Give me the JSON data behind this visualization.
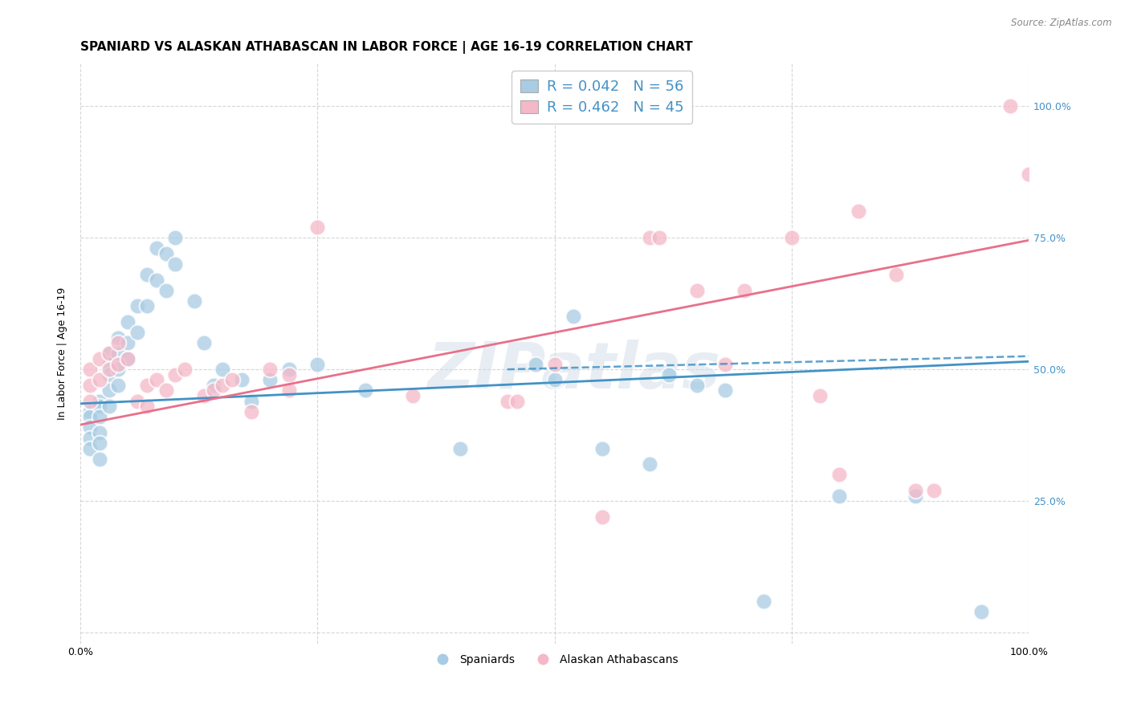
{
  "title": "SPANIARD VS ALASKAN ATHABASCAN IN LABOR FORCE | AGE 16-19 CORRELATION CHART",
  "source": "Source: ZipAtlas.com",
  "ylabel": "In Labor Force | Age 16-19",
  "xlim": [
    0,
    1
  ],
  "ylim": [
    -0.02,
    1.08
  ],
  "ytick_labels_right": [
    "100.0%",
    "75.0%",
    "50.0%",
    "25.0%"
  ],
  "ytick_positions_right": [
    1.0,
    0.75,
    0.5,
    0.25
  ],
  "watermark": "ZIPatlas",
  "blue_color": "#a8cce4",
  "pink_color": "#f4b8c8",
  "blue_line_color": "#4292c6",
  "pink_line_color": "#e8708a",
  "legend_R_blue": "R = 0.042",
  "legend_N_blue": "N = 56",
  "legend_R_pink": "R = 0.462",
  "legend_N_pink": "N = 45",
  "spaniards_x": [
    0.01,
    0.01,
    0.01,
    0.01,
    0.01,
    0.02,
    0.02,
    0.02,
    0.02,
    0.02,
    0.02,
    0.03,
    0.03,
    0.03,
    0.03,
    0.03,
    0.04,
    0.04,
    0.04,
    0.04,
    0.05,
    0.05,
    0.05,
    0.06,
    0.06,
    0.07,
    0.07,
    0.08,
    0.08,
    0.09,
    0.09,
    0.1,
    0.1,
    0.12,
    0.13,
    0.14,
    0.15,
    0.17,
    0.18,
    0.2,
    0.22,
    0.25,
    0.3,
    0.4,
    0.48,
    0.5,
    0.52,
    0.55,
    0.6,
    0.62,
    0.65,
    0.68,
    0.72,
    0.8,
    0.88,
    0.95
  ],
  "spaniards_y": [
    0.42,
    0.41,
    0.39,
    0.37,
    0.35,
    0.44,
    0.43,
    0.41,
    0.38,
    0.36,
    0.33,
    0.53,
    0.51,
    0.49,
    0.46,
    0.43,
    0.56,
    0.53,
    0.5,
    0.47,
    0.59,
    0.55,
    0.52,
    0.62,
    0.57,
    0.68,
    0.62,
    0.73,
    0.67,
    0.72,
    0.65,
    0.75,
    0.7,
    0.63,
    0.55,
    0.47,
    0.5,
    0.48,
    0.44,
    0.48,
    0.5,
    0.51,
    0.46,
    0.35,
    0.51,
    0.48,
    0.6,
    0.35,
    0.32,
    0.49,
    0.47,
    0.46,
    0.06,
    0.26,
    0.26,
    0.04
  ],
  "athabascan_x": [
    0.01,
    0.01,
    0.01,
    0.02,
    0.02,
    0.03,
    0.03,
    0.04,
    0.04,
    0.05,
    0.06,
    0.07,
    0.07,
    0.08,
    0.09,
    0.1,
    0.11,
    0.13,
    0.14,
    0.15,
    0.16,
    0.18,
    0.2,
    0.22,
    0.22,
    0.25,
    0.35,
    0.45,
    0.46,
    0.5,
    0.55,
    0.6,
    0.61,
    0.65,
    0.68,
    0.7,
    0.75,
    0.78,
    0.8,
    0.82,
    0.86,
    0.88,
    0.9,
    0.98,
    1.0
  ],
  "athabascan_y": [
    0.5,
    0.47,
    0.44,
    0.52,
    0.48,
    0.53,
    0.5,
    0.55,
    0.51,
    0.52,
    0.44,
    0.47,
    0.43,
    0.48,
    0.46,
    0.49,
    0.5,
    0.45,
    0.46,
    0.47,
    0.48,
    0.42,
    0.5,
    0.49,
    0.46,
    0.77,
    0.45,
    0.44,
    0.44,
    0.51,
    0.22,
    0.75,
    0.75,
    0.65,
    0.51,
    0.65,
    0.75,
    0.45,
    0.3,
    0.8,
    0.68,
    0.27,
    0.27,
    1.0,
    0.87
  ],
  "blue_trendline_x": [
    0.0,
    1.0
  ],
  "blue_trendline_y": [
    0.435,
    0.515
  ],
  "pink_trendline_x": [
    0.0,
    1.0
  ],
  "pink_trendline_y": [
    0.395,
    0.745
  ],
  "grid_color": "#cccccc",
  "background_color": "#ffffff",
  "title_fontsize": 11,
  "axis_label_fontsize": 9,
  "tick_fontsize": 9,
  "legend_fontsize": 13
}
